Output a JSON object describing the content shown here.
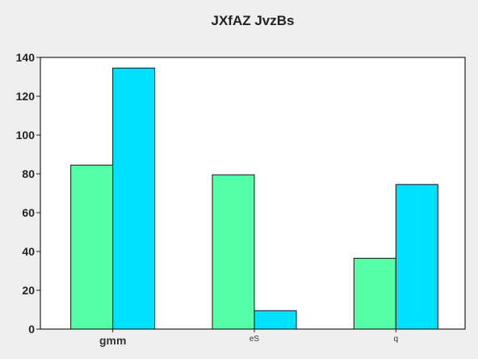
{
  "chart_data": {
    "type": "bar",
    "title": "JXfAZ JvzBs",
    "xlabel": "",
    "ylabel": "",
    "categories": [
      "gmm",
      "eS",
      "q"
    ],
    "series": [
      {
        "values": [
          84.5,
          79.5,
          36.5
        ],
        "color": "#55ffa6"
      },
      {
        "values": [
          134.5,
          9.5,
          74.5
        ],
        "color": "#00e0ff"
      }
    ],
    "ylim": [
      0,
      140
    ],
    "yticks": [
      0,
      20,
      40,
      60,
      80,
      100,
      120,
      140
    ],
    "grid": false,
    "legend": "none",
    "background": "#ffffff",
    "page_background": "#efefef"
  }
}
